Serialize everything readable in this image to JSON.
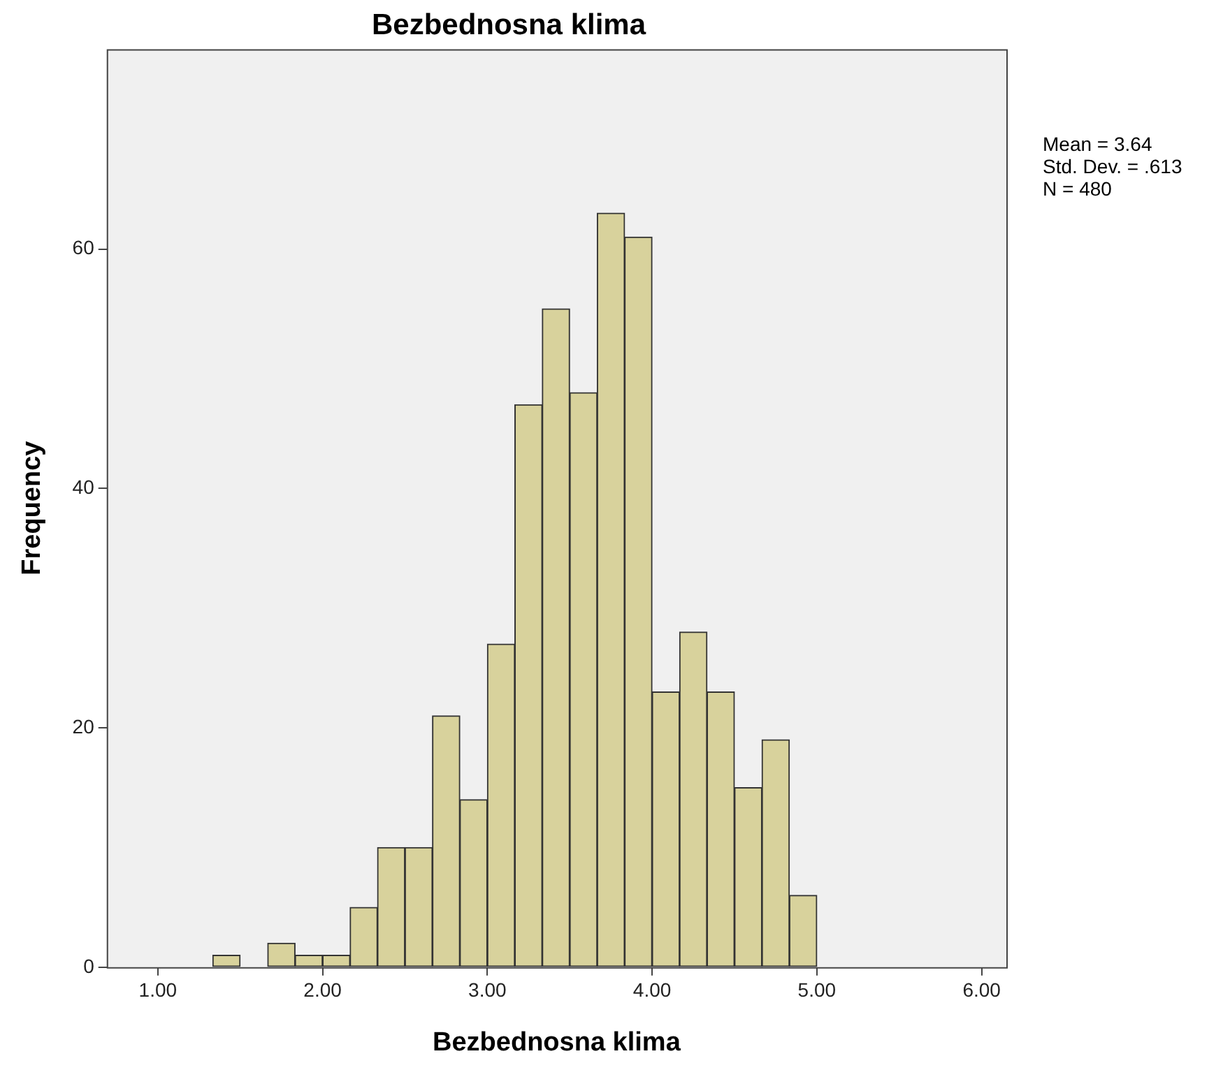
{
  "chart_data": {
    "type": "histogram",
    "title": "Bezbednosna klima",
    "xlabel": "Bezbednosna klima",
    "ylabel": "Frequency",
    "bins": [
      1.333,
      1.5,
      1.667,
      1.833,
      2.0,
      2.167,
      2.333,
      2.5,
      2.667,
      2.833,
      3.0,
      3.167,
      3.333,
      3.5,
      3.667,
      3.833,
      4.0,
      4.167,
      4.333,
      4.5,
      4.667,
      4.833,
      5.0
    ],
    "values": [
      1,
      0,
      2,
      1,
      1,
      5,
      10,
      10,
      21,
      14,
      27,
      47,
      55,
      48,
      63,
      61,
      23,
      28,
      23,
      15,
      19,
      6
    ],
    "color": "#d8d29c",
    "xlim": [
      0.69,
      6.15
    ],
    "xticks": [
      {
        "value": 1,
        "label": "1.00"
      },
      {
        "value": 2,
        "label": "2.00"
      },
      {
        "value": 3,
        "label": "3.00"
      },
      {
        "value": 4,
        "label": "4.00"
      },
      {
        "value": 5,
        "label": "5.00"
      },
      {
        "value": 6,
        "label": "6.00"
      }
    ],
    "ylim": [
      0,
      76.7
    ],
    "yticks": [
      0,
      20,
      40,
      60
    ],
    "grid": false,
    "legend": false,
    "annotations": [
      "Mean = 3.64",
      "Std. Dev. = .613",
      "N = 480"
    ]
  }
}
